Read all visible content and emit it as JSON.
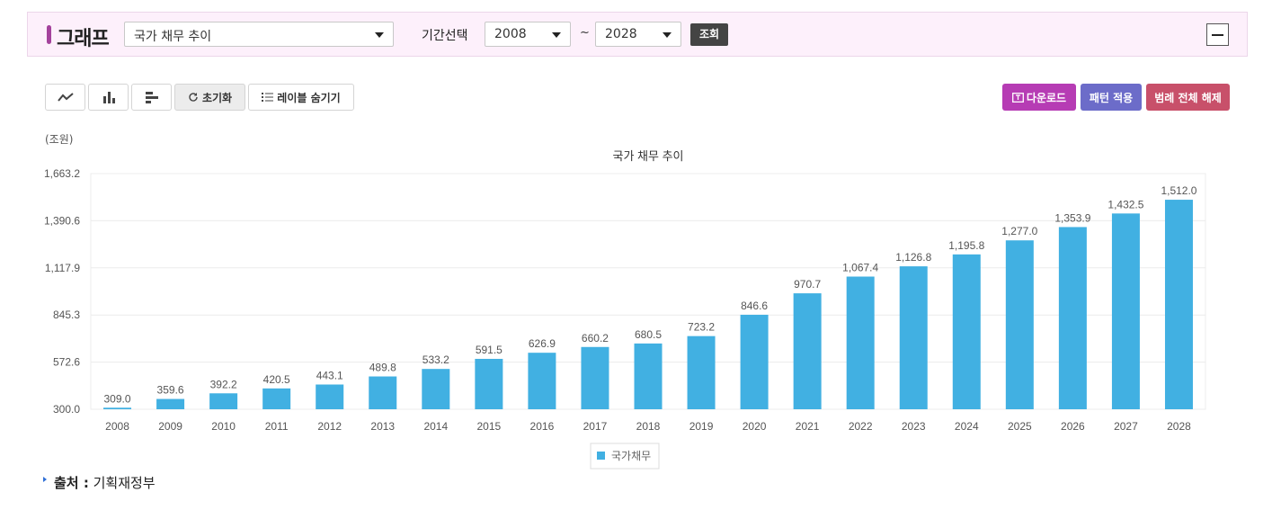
{
  "header": {
    "title": "그래프",
    "graph_select": "국가 채무 추이",
    "period_label": "기간선택",
    "from_year": "2008",
    "tilde": "~",
    "to_year": "2028",
    "query_label": "조회"
  },
  "toolbar": {
    "reset_label": "초기화",
    "hide_labels_label": "레이블 숨기기",
    "download_label": "다운로드",
    "pattern_label": "패턴 적용",
    "legend_toggle_label": "범례 전체 해제"
  },
  "colors": {
    "bar": "#41b0e2",
    "accent": "#a4429c",
    "download": "#b63cb4",
    "pattern": "#6c6cc9",
    "legend_toggle": "#c8506a"
  },
  "chart_data": {
    "type": "bar",
    "title": "국가 채무 추이",
    "unit": "(조원)",
    "categories": [
      "2008",
      "2009",
      "2010",
      "2011",
      "2012",
      "2013",
      "2014",
      "2015",
      "2016",
      "2017",
      "2018",
      "2019",
      "2020",
      "2021",
      "2022",
      "2023",
      "2024",
      "2025",
      "2026",
      "2027",
      "2028"
    ],
    "series": [
      {
        "name": "국가채무",
        "values": [
          309.0,
          359.6,
          392.2,
          420.5,
          443.1,
          489.8,
          533.2,
          591.5,
          626.9,
          660.2,
          680.5,
          723.2,
          846.6,
          970.7,
          1067.4,
          1126.8,
          1195.8,
          1277.0,
          1353.9,
          1432.5,
          1512.0
        ],
        "labels": [
          "309.0",
          "359.6",
          "392.2",
          "420.5",
          "443.1",
          "489.8",
          "533.2",
          "591.5",
          "626.9",
          "660.2",
          "680.5",
          "723.2",
          "846.6",
          "970.7",
          "1,067.4",
          "1,126.8",
          "1,195.8",
          "1,277.0",
          "1,353.9",
          "1,432.5",
          "1,512.0"
        ]
      }
    ],
    "yticks": [
      300.0,
      572.6,
      845.3,
      1117.9,
      1390.6,
      1663.2
    ],
    "ytick_labels": [
      "300.0",
      "572.6",
      "845.3",
      "1,117.9",
      "1,390.6",
      "1,663.2"
    ],
    "ylim": [
      300.0,
      1663.2
    ],
    "grid": true,
    "legend_position": "bottom-center"
  },
  "source": {
    "label": "출처 :",
    "value": "기획재정부"
  }
}
